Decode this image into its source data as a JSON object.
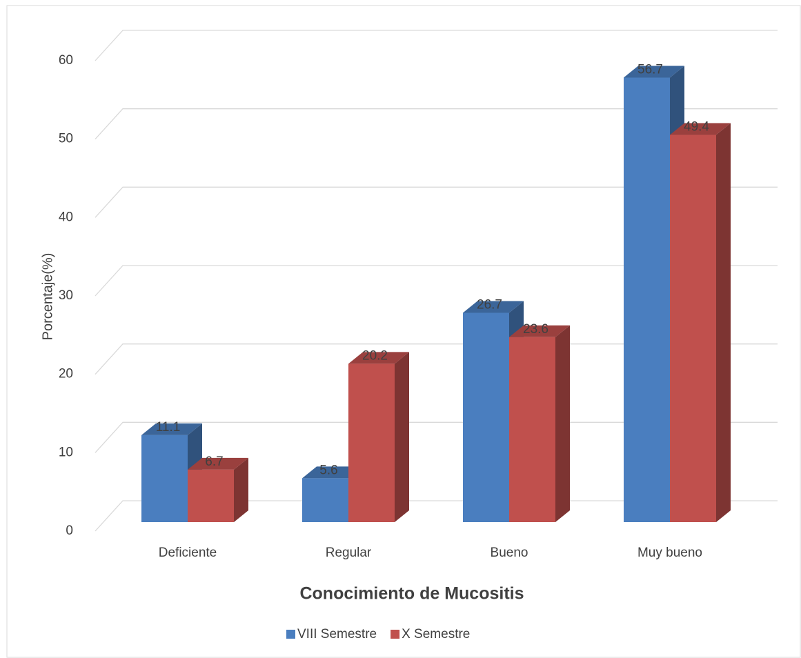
{
  "chart_data": {
    "type": "bar3d",
    "title": "Conocimiento de Mucositis",
    "y_label": "Porcentaje(%)",
    "categories": [
      "Deficiente",
      "Regular",
      "Bueno",
      "Muy bueno"
    ],
    "series": [
      {
        "name": "VIII Semestre",
        "color": "#4a7ebf",
        "values": [
          11.1,
          5.6,
          26.7,
          56.7
        ]
      },
      {
        "name": "X Semestre",
        "color": "#c0504d",
        "values": [
          6.7,
          20.2,
          23.6,
          49.4
        ]
      }
    ],
    "ylim": [
      0,
      60
    ],
    "yticks": [
      0,
      10,
      20,
      30,
      40,
      50,
      60
    ],
    "grid": true,
    "legend": "bottom"
  }
}
